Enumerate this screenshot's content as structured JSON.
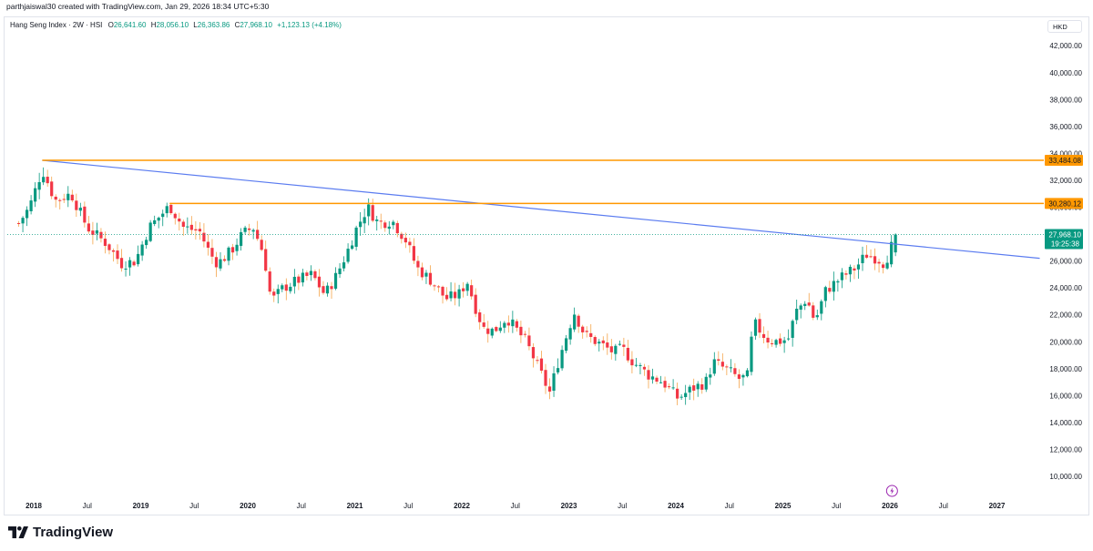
{
  "credit": "parthjaiswal30 created with TradingView.com, Jan 29, 2026 18:34 UTC+5:30",
  "legend": {
    "title": "Hang Seng Index · 2W · HSI",
    "o_label": "O",
    "o_value": "26,641.60",
    "h_label": "H",
    "h_value": "28,056.10",
    "l_label": "L",
    "l_value": "26,363.86",
    "c_label": "C",
    "c_value": "27,968.10",
    "change": "+1,123.13 (+4.18%)"
  },
  "currency": "HKD",
  "brand": "TradingView",
  "colors": {
    "up": "#089981",
    "down": "#f23645",
    "orange": "#ff9800",
    "trendline": "#5b7cf0",
    "accent_purple": "#9c27b0"
  },
  "chart_data": {
    "type": "candlestick",
    "instrument": "Hang Seng Index",
    "interval": "2W",
    "symbol": "HSI",
    "currency": "HKD",
    "ylim": [
      8500,
      43500
    ],
    "y_ticks": [
      "10,000.00",
      "12,000.00",
      "14,000.00",
      "16,000.00",
      "18,000.00",
      "20,000.00",
      "22,000.00",
      "24,000.00",
      "26,000.00",
      "28,000.00",
      "30,000.00",
      "32,000.00",
      "34,000.00",
      "36,000.00",
      "38,000.00",
      "40,000.00",
      "42,000.00"
    ],
    "x_ticks": [
      {
        "label": "2018",
        "t": 2018.0
      },
      {
        "label": "Jul",
        "t": 2018.5
      },
      {
        "label": "2019",
        "t": 2019.0
      },
      {
        "label": "Jul",
        "t": 2019.5
      },
      {
        "label": "2020",
        "t": 2020.0
      },
      {
        "label": "Jul",
        "t": 2020.5
      },
      {
        "label": "2021",
        "t": 2021.0
      },
      {
        "label": "Jul",
        "t": 2021.5
      },
      {
        "label": "2022",
        "t": 2022.0
      },
      {
        "label": "Jul",
        "t": 2022.5
      },
      {
        "label": "2023",
        "t": 2023.0
      },
      {
        "label": "Jul",
        "t": 2023.5
      },
      {
        "label": "2024",
        "t": 2024.0
      },
      {
        "label": "Jul",
        "t": 2024.5
      },
      {
        "label": "2025",
        "t": 2025.0
      },
      {
        "label": "Jul",
        "t": 2025.5
      },
      {
        "label": "2026",
        "t": 2026.0
      },
      {
        "label": "Jul",
        "t": 2026.5
      },
      {
        "label": "2027",
        "t": 2027.0
      }
    ],
    "bold_year_ticks": true,
    "horizontal_levels": [
      {
        "price": 33484.08,
        "label": "33,484.08",
        "start_t": 2018.08
      },
      {
        "price": 30280.12,
        "label": "30,280.12",
        "start_t": 2019.27
      }
    ],
    "trendline": {
      "start": {
        "t": 2018.08,
        "price": 33484.08
      },
      "end": {
        "t": 2027.4,
        "price": 26200
      }
    },
    "last_price": {
      "price": 27968.1,
      "label": "27,968.10",
      "countdown": "19:25:38"
    },
    "anchors": [
      [
        2017.86,
        28800
      ],
      [
        2017.96,
        30000
      ],
      [
        2018.08,
        32800
      ],
      [
        2018.2,
        30500
      ],
      [
        2018.35,
        31000
      ],
      [
        2018.5,
        28500
      ],
      [
        2018.68,
        27300
      ],
      [
        2018.82,
        25800
      ],
      [
        2018.95,
        26000
      ],
      [
        2019.08,
        28500
      ],
      [
        2019.27,
        30100
      ],
      [
        2019.4,
        28500
      ],
      [
        2019.55,
        28200
      ],
      [
        2019.65,
        26500
      ],
      [
        2019.72,
        25800
      ],
      [
        2019.85,
        26800
      ],
      [
        2019.95,
        28000
      ],
      [
        2020.05,
        28500
      ],
      [
        2020.15,
        26500
      ],
      [
        2020.22,
        23000
      ],
      [
        2020.33,
        24000
      ],
      [
        2020.45,
        24500
      ],
      [
        2020.6,
        25000
      ],
      [
        2020.72,
        23500
      ],
      [
        2020.82,
        24800
      ],
      [
        2020.92,
        26500
      ],
      [
        2021.02,
        28500
      ],
      [
        2021.12,
        30000
      ],
      [
        2021.22,
        28800
      ],
      [
        2021.35,
        29000
      ],
      [
        2021.48,
        27500
      ],
      [
        2021.58,
        25500
      ],
      [
        2021.72,
        24500
      ],
      [
        2021.85,
        23200
      ],
      [
        2021.97,
        23500
      ],
      [
        2022.05,
        24500
      ],
      [
        2022.13,
        22500
      ],
      [
        2022.2,
        21000
      ],
      [
        2022.3,
        20800
      ],
      [
        2022.42,
        21800
      ],
      [
        2022.5,
        21000
      ],
      [
        2022.6,
        20000
      ],
      [
        2022.72,
        18000
      ],
      [
        2022.82,
        16200
      ],
      [
        2022.9,
        18500
      ],
      [
        2023.0,
        21000
      ],
      [
        2023.05,
        22200
      ],
      [
        2023.15,
        20500
      ],
      [
        2023.3,
        19800
      ],
      [
        2023.42,
        19200
      ],
      [
        2023.5,
        19500
      ],
      [
        2023.6,
        18500
      ],
      [
        2023.75,
        17500
      ],
      [
        2023.88,
        17000
      ],
      [
        2024.02,
        15800
      ],
      [
        2024.15,
        16500
      ],
      [
        2024.28,
        17000
      ],
      [
        2024.35,
        18500
      ],
      [
        2024.5,
        17800
      ],
      [
        2024.6,
        17200
      ],
      [
        2024.68,
        17500
      ],
      [
        2024.72,
        21500
      ],
      [
        2024.85,
        20200
      ],
      [
        2024.95,
        20000
      ],
      [
        2025.05,
        20200
      ],
      [
        2025.12,
        22200
      ],
      [
        2025.22,
        23200
      ],
      [
        2025.3,
        21500
      ],
      [
        2025.4,
        23800
      ],
      [
        2025.55,
        24800
      ],
      [
        2025.68,
        25500
      ],
      [
        2025.78,
        26500
      ],
      [
        2025.88,
        26200
      ],
      [
        2025.95,
        25800
      ],
      [
        2026.0,
        26800
      ],
      [
        2026.06,
        27968
      ]
    ]
  }
}
